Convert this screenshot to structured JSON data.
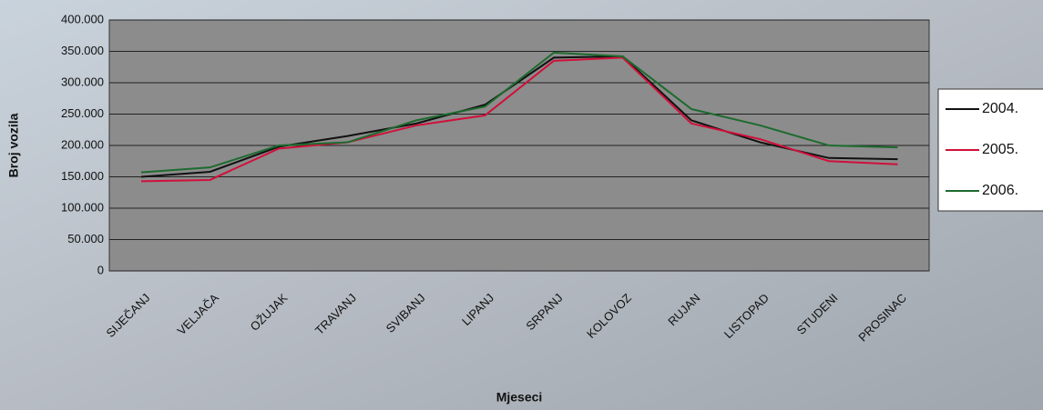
{
  "chart_data": {
    "type": "line",
    "x_label": "Mjeseci",
    "y_label": "Broj vozila",
    "categories": [
      "SIJEČANJ",
      "VELJAČA",
      "OŽUJAK",
      "TRAVANJ",
      "SVIBANJ",
      "LIPANJ",
      "SRPANJ",
      "KOLOVOZ",
      "RUJAN",
      "LISTOPAD",
      "STUDENI",
      "PROSINAC"
    ],
    "series": [
      {
        "name": "2004.",
        "color": "#111111",
        "values": [
          150000,
          158000,
          198000,
          215000,
          235000,
          265000,
          340000,
          342000,
          240000,
          205000,
          180000,
          178000
        ]
      },
      {
        "name": "2005.",
        "color": "#d0103a",
        "values": [
          143000,
          145000,
          195000,
          205000,
          232000,
          248000,
          335000,
          340000,
          235000,
          210000,
          175000,
          170000
        ]
      },
      {
        "name": "2006.",
        "color": "#1d6b2e",
        "values": [
          157000,
          165000,
          200000,
          205000,
          240000,
          262000,
          348000,
          342000,
          258000,
          232000,
          200000,
          197000
        ]
      }
    ],
    "ylim": [
      0,
      400000
    ],
    "yticks": [
      0,
      {
        "value": 50000,
        "label": "50.000"
      },
      {
        "value": 100000,
        "label": "100.000"
      },
      {
        "value": 150000,
        "label": "150.000"
      },
      {
        "value": 200000,
        "label": "200.000"
      },
      {
        "value": 250000,
        "label": "250.000"
      },
      {
        "value": 300000,
        "label": "300.000"
      },
      {
        "value": 350000,
        "label": "350.000"
      },
      {
        "value": 400000,
        "label": "400.000"
      }
    ],
    "grid": true,
    "legend": "right"
  }
}
